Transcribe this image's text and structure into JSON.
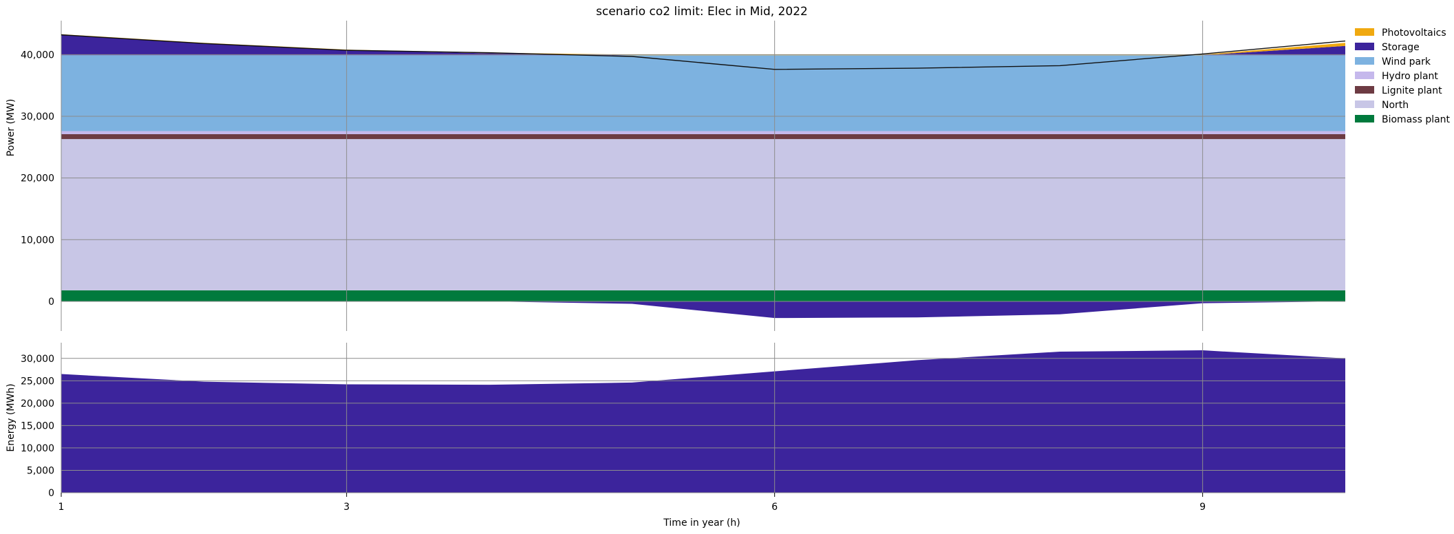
{
  "chart_data": {
    "title": "scenario co2 limit: Elec in Mid, 2022",
    "xlabel": "Time in year (h)",
    "x": [
      1,
      2,
      3,
      4,
      5,
      6,
      7,
      8,
      9,
      10
    ],
    "x_ticks": [
      1,
      3,
      6,
      9
    ],
    "x_tick_labels": [
      "1",
      "3",
      "6",
      "9"
    ],
    "grid": true,
    "legend_position": "top-right outside",
    "panels": [
      {
        "type": "area",
        "ylabel": "Power (MW)",
        "ylim": [
          -4800,
          45500
        ],
        "y_ticks": [
          0,
          10000,
          20000,
          30000,
          40000
        ],
        "y_tick_labels": [
          "0",
          "10,000",
          "20,000",
          "30,000",
          "40,000"
        ],
        "series_positive": [
          {
            "name": "Biomass plant",
            "color": "#007a3d",
            "values": [
              1800,
              1800,
              1800,
              1800,
              1800,
              1800,
              1800,
              1800,
              1800,
              1800
            ]
          },
          {
            "name": "North",
            "color": "#c8c6e6",
            "values": [
              24500,
              24500,
              24500,
              24500,
              24500,
              24500,
              24500,
              24500,
              24500,
              24500
            ]
          },
          {
            "name": "Lignite plant",
            "color": "#6d3b43",
            "values": [
              800,
              800,
              800,
              800,
              800,
              800,
              800,
              800,
              800,
              800
            ]
          },
          {
            "name": "Hydro plant",
            "color": "#c5b8ec",
            "values": [
              500,
              500,
              500,
              500,
              500,
              500,
              500,
              500,
              500,
              500
            ]
          },
          {
            "name": "Wind park",
            "color": "#7db2e0",
            "values": [
              12300,
              12300,
              12300,
              12300,
              12300,
              12300,
              12300,
              12300,
              12300,
              12300
            ]
          },
          {
            "name": "Storage",
            "color": "#3c249c",
            "values": [
              3300,
              1900,
              800,
              300,
              0,
              0,
              0,
              0,
              0,
              1500
            ]
          },
          {
            "name": "Photovoltaics",
            "color": "#f0a910",
            "values": [
              100,
              100,
              100,
              100,
              100,
              100,
              100,
              100,
              100,
              500
            ]
          }
        ],
        "series_negative": [
          {
            "name": "Storage",
            "color": "#3c249c",
            "values": [
              0,
              0,
              0,
              0,
              -400,
              -2700,
              -2600,
              -2100,
              -300,
              0
            ]
          }
        ],
        "line": {
          "name": "demand",
          "values": [
            43200,
            41800,
            40700,
            40300,
            39700,
            37600,
            37800,
            38200,
            40100,
            42200
          ]
        }
      },
      {
        "type": "area",
        "ylabel": "Energy (MWh)",
        "ylim": [
          0,
          33500
        ],
        "y_ticks": [
          0,
          5000,
          10000,
          15000,
          20000,
          25000,
          30000
        ],
        "y_tick_labels": [
          "0",
          "5,000",
          "10,000",
          "15,000",
          "20,000",
          "25,000",
          "30,000"
        ],
        "series": [
          {
            "name": "Storage",
            "color": "#3c249c",
            "values": [
              26500,
              24800,
              24200,
              24100,
              24600,
              27100,
              29600,
              31500,
              31800,
              30000
            ]
          }
        ]
      }
    ],
    "legend": [
      {
        "name": "Photovoltaics",
        "color": "#f0a910"
      },
      {
        "name": "Storage",
        "color": "#3c249c"
      },
      {
        "name": "Wind park",
        "color": "#7db2e0"
      },
      {
        "name": "Hydro plant",
        "color": "#c5b8ec"
      },
      {
        "name": "Lignite plant",
        "color": "#6d3b43"
      },
      {
        "name": "North",
        "color": "#c8c6e6"
      },
      {
        "name": "Biomass plant",
        "color": "#007a3d"
      }
    ]
  }
}
